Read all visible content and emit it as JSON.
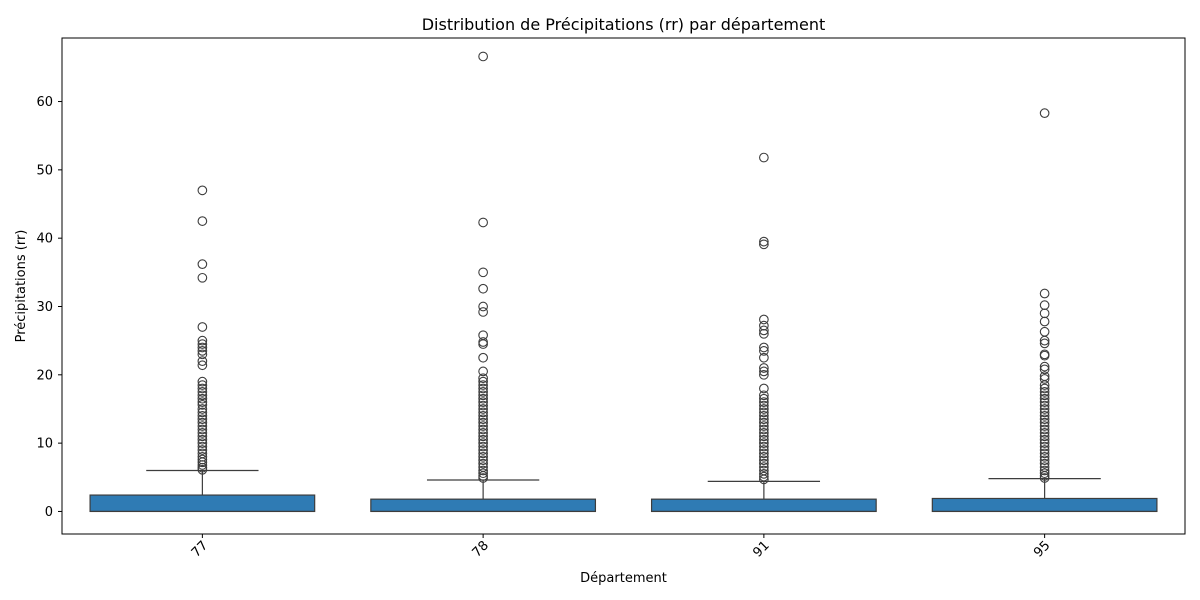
{
  "chart_data": {
    "type": "box",
    "title": "Distribution de Précipitations (rr) par département",
    "xlabel": "Département",
    "ylabel": "Précipitations (rr)",
    "ylim": [
      -3.3,
      69.3
    ],
    "yticks": [
      0,
      10,
      20,
      30,
      40,
      50,
      60
    ],
    "categories": [
      "77",
      "78",
      "91",
      "95"
    ],
    "x_tick_rotation": 45,
    "box_color": "#2f7bb4",
    "line_color": "#3d3d3d",
    "grid": false,
    "boxes": [
      {
        "category": "77",
        "min": 0,
        "q1": 0,
        "median": 0,
        "q3": 2.4,
        "whisker_high": 6.0,
        "outliers": [
          47.0,
          42.5,
          36.2,
          34.2,
          27.0,
          25.0,
          24.5,
          24.0,
          23.5,
          23.0,
          22.0,
          21.4,
          19.0,
          18.5,
          18.0,
          17.5,
          17.0,
          16.5,
          16.0,
          15.6,
          15.0,
          14.5,
          14.0,
          13.5,
          13.0,
          12.5,
          12.0,
          11.5,
          11.0,
          10.5,
          10.0,
          9.5,
          9.0,
          8.5,
          8.0,
          7.6,
          7.2,
          6.8,
          6.4,
          6.1
        ]
      },
      {
        "category": "78",
        "min": 0,
        "q1": 0,
        "median": 0,
        "q3": 1.8,
        "whisker_high": 4.6,
        "outliers": [
          66.6,
          42.3,
          35.0,
          32.6,
          30.0,
          29.2,
          25.8,
          24.8,
          24.5,
          22.5,
          20.5,
          19.5,
          19.0,
          18.5,
          18.0,
          17.5,
          17.0,
          16.5,
          16.0,
          15.5,
          15.0,
          14.5,
          14.0,
          13.5,
          13.0,
          12.5,
          12.0,
          11.5,
          11.0,
          10.5,
          10.0,
          9.5,
          9.0,
          8.5,
          8.0,
          7.5,
          7.0,
          6.5,
          6.0,
          5.6,
          5.2,
          4.9
        ]
      },
      {
        "category": "91",
        "min": 0,
        "q1": 0,
        "median": 0,
        "q3": 1.8,
        "whisker_high": 4.4,
        "outliers": [
          51.8,
          39.5,
          39.1,
          28.1,
          27.2,
          26.5,
          26.0,
          24.0,
          23.5,
          22.5,
          21.0,
          20.5,
          20.0,
          18.0,
          17.0,
          16.5,
          16.0,
          15.5,
          15.0,
          14.5,
          14.0,
          13.5,
          13.0,
          12.5,
          12.0,
          11.5,
          11.0,
          10.5,
          10.0,
          9.5,
          9.0,
          8.5,
          8.0,
          7.5,
          7.0,
          6.5,
          6.0,
          5.5,
          5.1,
          4.7
        ]
      },
      {
        "category": "95",
        "min": 0,
        "q1": 0,
        "median": 0,
        "q3": 1.9,
        "whisker_high": 4.8,
        "outliers": [
          58.3,
          31.9,
          30.2,
          29.0,
          27.8,
          26.3,
          25.0,
          24.6,
          23.0,
          22.8,
          21.2,
          20.8,
          19.8,
          19.4,
          18.5,
          18.0,
          17.5,
          17.0,
          16.5,
          16.0,
          15.5,
          15.0,
          14.5,
          14.0,
          13.5,
          13.0,
          12.5,
          12.0,
          11.5,
          11.0,
          10.5,
          10.0,
          9.5,
          9.0,
          8.5,
          8.0,
          7.5,
          7.0,
          6.5,
          6.0,
          5.6,
          5.2,
          4.9
        ]
      }
    ]
  }
}
